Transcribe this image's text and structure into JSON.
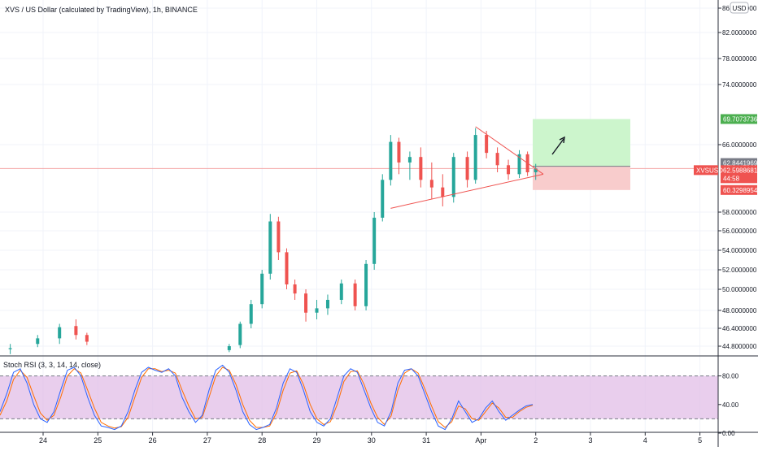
{
  "header": {
    "title": "XVS / US Dollar (calculated by TradingView), 1h, BINANCE",
    "currency_badge": "USD",
    "indicator_label": "Stoch RSI (3, 3, 14, 14, close)"
  },
  "chart_data": {
    "type": "candlestick",
    "price_axis": {
      "ticks": [
        "86.0000000",
        "82.0000000",
        "78.0000000",
        "74.0000000",
        "66.0000000",
        "58.0000000",
        "56.0000000",
        "54.0000000",
        "52.0000000",
        "50.0000000",
        "48.0000000",
        "46.4000000",
        "44.8000000"
      ],
      "tick_values": [
        86.0,
        82.0,
        78.0,
        74.0,
        66.0,
        58.0,
        56.0,
        54.0,
        52.0,
        50.0,
        48.0,
        46.4,
        44.8
      ]
    },
    "price_labels": [
      {
        "text": "69.7073736",
        "value": 69.7073736,
        "color": "#4caf50"
      },
      {
        "text": "62.8441969",
        "value": 62.8441969,
        "color": "#787b86"
      },
      {
        "text": "XVSUSD",
        "value": 62.5988681,
        "color": "#ef5350"
      },
      {
        "text": "62.5988681",
        "value": 62.5988681,
        "color": "#ef5350"
      },
      {
        "text": "44:58",
        "value": 62.5988681,
        "color": "#ef5350"
      },
      {
        "text": "60.3298954",
        "value": 60.3298954,
        "color": "#ef5350"
      }
    ],
    "current_price": 62.5988681,
    "time_axis": [
      "24",
      "25",
      "26",
      "27",
      "28",
      "29",
      "30",
      "31",
      "Apr",
      "2",
      "3",
      "4",
      "5"
    ],
    "candles": [
      {
        "day": 23.4,
        "o": 44.5,
        "h": 45.0,
        "l": 44.0,
        "c": 44.6
      },
      {
        "day": 23.9,
        "o": 45.0,
        "h": 45.8,
        "l": 44.7,
        "c": 45.5
      },
      {
        "day": 24.3,
        "o": 45.5,
        "h": 46.8,
        "l": 45.0,
        "c": 46.5
      },
      {
        "day": 24.6,
        "o": 46.6,
        "h": 47.2,
        "l": 45.4,
        "c": 45.8
      },
      {
        "day": 24.8,
        "o": 45.8,
        "h": 46.0,
        "l": 44.9,
        "c": 45.2
      },
      {
        "day": 27.4,
        "o": 44.4,
        "h": 45.0,
        "l": 44.2,
        "c": 44.8
      },
      {
        "day": 27.6,
        "o": 44.9,
        "h": 47.0,
        "l": 44.6,
        "c": 46.8
      },
      {
        "day": 27.8,
        "o": 46.8,
        "h": 49.0,
        "l": 46.4,
        "c": 48.6
      },
      {
        "day": 28.0,
        "o": 48.6,
        "h": 52.0,
        "l": 48.2,
        "c": 51.6
      },
      {
        "day": 28.15,
        "o": 51.6,
        "h": 57.8,
        "l": 51.0,
        "c": 57.0
      },
      {
        "day": 28.3,
        "o": 57.0,
        "h": 57.5,
        "l": 53.0,
        "c": 53.8
      },
      {
        "day": 28.45,
        "o": 53.8,
        "h": 54.2,
        "l": 50.0,
        "c": 50.5
      },
      {
        "day": 28.6,
        "o": 50.5,
        "h": 51.0,
        "l": 49.0,
        "c": 49.6
      },
      {
        "day": 28.8,
        "o": 49.6,
        "h": 50.0,
        "l": 47.0,
        "c": 47.8
      },
      {
        "day": 29.0,
        "o": 47.8,
        "h": 49.0,
        "l": 47.2,
        "c": 48.2
      },
      {
        "day": 29.2,
        "o": 48.2,
        "h": 49.5,
        "l": 47.6,
        "c": 49.0
      },
      {
        "day": 29.45,
        "o": 49.0,
        "h": 51.0,
        "l": 48.6,
        "c": 50.6
      },
      {
        "day": 29.7,
        "o": 50.6,
        "h": 51.0,
        "l": 48.0,
        "c": 48.4
      },
      {
        "day": 29.9,
        "o": 48.4,
        "h": 53.0,
        "l": 48.0,
        "c": 52.6
      },
      {
        "day": 30.05,
        "o": 52.6,
        "h": 58.0,
        "l": 52.0,
        "c": 57.4
      },
      {
        "day": 30.2,
        "o": 57.4,
        "h": 62.0,
        "l": 57.0,
        "c": 61.4
      },
      {
        "day": 30.35,
        "o": 61.4,
        "h": 67.4,
        "l": 60.8,
        "c": 66.4
      },
      {
        "day": 30.5,
        "o": 66.4,
        "h": 67.0,
        "l": 62.0,
        "c": 63.4
      },
      {
        "day": 30.7,
        "o": 63.4,
        "h": 65.0,
        "l": 61.4,
        "c": 64.2
      },
      {
        "day": 30.9,
        "o": 64.2,
        "h": 65.6,
        "l": 60.6,
        "c": 61.4
      },
      {
        "day": 31.1,
        "o": 61.4,
        "h": 63.4,
        "l": 59.4,
        "c": 60.6
      },
      {
        "day": 31.3,
        "o": 60.6,
        "h": 62.0,
        "l": 58.6,
        "c": 59.6
      },
      {
        "day": 31.5,
        "o": 59.6,
        "h": 64.8,
        "l": 59.0,
        "c": 64.2
      },
      {
        "day": 31.75,
        "o": 64.2,
        "h": 65.0,
        "l": 60.6,
        "c": 61.4
      },
      {
        "day": 31.9,
        "o": 61.4,
        "h": 68.4,
        "l": 61.0,
        "c": 67.4
      },
      {
        "day": 32.1,
        "o": 67.4,
        "h": 68.0,
        "l": 64.0,
        "c": 64.8
      },
      {
        "day": 32.3,
        "o": 64.8,
        "h": 65.6,
        "l": 62.2,
        "c": 63.0
      },
      {
        "day": 32.5,
        "o": 63.0,
        "h": 63.8,
        "l": 61.4,
        "c": 62.0
      },
      {
        "day": 32.7,
        "o": 62.0,
        "h": 65.2,
        "l": 61.6,
        "c": 64.6
      },
      {
        "day": 32.85,
        "o": 64.6,
        "h": 65.0,
        "l": 61.8,
        "c": 62.2
      },
      {
        "day": 33.0,
        "o": 62.2,
        "h": 63.2,
        "l": 61.4,
        "c": 62.6
      }
    ],
    "trade_setup": {
      "entry": 62.8441969,
      "target": 69.7073736,
      "stop": 60.3298954
    },
    "indicator": {
      "name": "Stoch RSI (3, 3, 14, 14, close)",
      "ticks": [
        "80.00",
        "40.00",
        "0.00"
      ],
      "tick_values": [
        80,
        40,
        0
      ],
      "upper_band": 80,
      "lower_band": 20,
      "k": [
        30,
        55,
        85,
        90,
        70,
        40,
        20,
        15,
        30,
        60,
        88,
        92,
        80,
        50,
        25,
        10,
        8,
        5,
        10,
        30,
        60,
        85,
        92,
        88,
        85,
        90,
        80,
        50,
        30,
        15,
        25,
        60,
        88,
        95,
        85,
        60,
        30,
        12,
        5,
        8,
        12,
        35,
        70,
        90,
        85,
        60,
        30,
        15,
        10,
        20,
        50,
        80,
        90,
        85,
        60,
        35,
        15,
        10,
        30,
        70,
        88,
        90,
        80,
        55,
        30,
        10,
        5,
        20,
        45,
        30,
        15,
        20,
        35,
        45,
        30,
        18,
        25,
        32,
        38,
        40
      ],
      "d": [
        25,
        45,
        75,
        88,
        78,
        52,
        28,
        18,
        25,
        50,
        80,
        90,
        84,
        60,
        35,
        15,
        10,
        7,
        9,
        22,
        50,
        78,
        90,
        90,
        86,
        88,
        84,
        60,
        38,
        20,
        22,
        50,
        80,
        92,
        88,
        68,
        40,
        18,
        8,
        8,
        10,
        28,
        60,
        84,
        87,
        68,
        40,
        20,
        12,
        16,
        40,
        72,
        86,
        87,
        68,
        42,
        22,
        12,
        24,
        60,
        84,
        90,
        84,
        62,
        38,
        16,
        8,
        16,
        38,
        34,
        20,
        18,
        30,
        42,
        35,
        22,
        22,
        30,
        36,
        39
      ]
    },
    "colors": {
      "up": "#26a69a",
      "down": "#ef5350",
      "k_line": "#2962ff",
      "d_line": "#ff6d00",
      "band_fill": "#e1bee7",
      "target_zone": "#ccf5cc",
      "stop_zone": "#f8cccc"
    }
  }
}
